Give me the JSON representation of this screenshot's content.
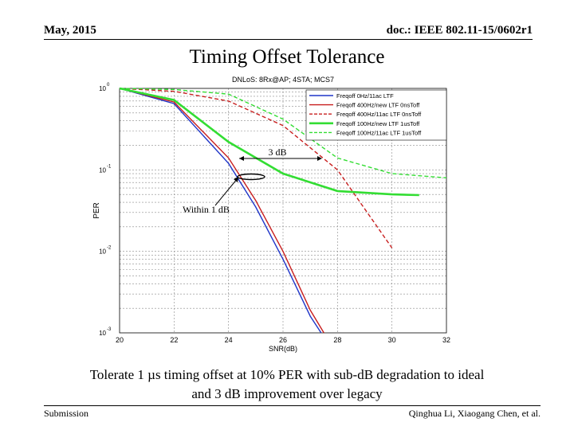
{
  "header": {
    "date": "May, 2015",
    "doc": "doc.: IEEE 802.11-15/0602r1"
  },
  "slide_title": "Timing Offset Tolerance",
  "caption_line1": "Tolerate 1 µs timing offset at 10% PER with sub-dB degradation to ideal",
  "caption_line2": "and 3 dB improvement over legacy",
  "footer": {
    "left": "Submission",
    "right": "Qinghua Li, Xiaogang Chen, et al."
  },
  "colors": {
    "blue": "#1f35c8",
    "red": "#c81e1e",
    "green": "#33dd33"
  },
  "chart_data": {
    "type": "line",
    "title": "DNLoS: 8Rx@AP; 4STA; MCS7",
    "xlabel": "SNR(dB)",
    "ylabel": "PER",
    "xlim": [
      20,
      32
    ],
    "ylim": [
      0.001,
      1
    ],
    "yscale": "log",
    "x_ticks": [
      "20",
      "22",
      "24",
      "26",
      "28",
      "30",
      "32"
    ],
    "y_ticks": [
      {
        "value": 1,
        "base": "10",
        "exp": "0"
      },
      {
        "value": 0.1,
        "base": "10",
        "exp": "-1"
      },
      {
        "value": 0.01,
        "base": "10",
        "exp": "-2"
      },
      {
        "value": 0.001,
        "base": "10",
        "exp": "-3"
      }
    ],
    "grid": true,
    "legend_position": "top-right",
    "series": [
      {
        "name": "Freqoff 0Hz/11ac LTF",
        "color": "#1f35c8",
        "dash": "solid",
        "width": 1.4,
        "x": [
          20,
          22,
          24,
          25,
          26,
          27,
          27.4
        ],
        "y": [
          1,
          0.65,
          0.12,
          0.035,
          0.008,
          0.0016,
          0.001
        ]
      },
      {
        "name": "Freqoff 400Hz/new LTF 0nsToff",
        "color": "#c81e1e",
        "dash": "solid",
        "width": 1.4,
        "x": [
          20,
          22,
          24,
          25,
          26,
          27,
          27.5
        ],
        "y": [
          1,
          0.68,
          0.14,
          0.042,
          0.01,
          0.0019,
          0.001
        ]
      },
      {
        "name": "Freqoff 400Hz/11ac LTF 0nsToff",
        "color": "#c81e1e",
        "dash": "dashed",
        "width": 1.4,
        "x": [
          20,
          22,
          24,
          26,
          28,
          30
        ],
        "y": [
          1,
          0.92,
          0.7,
          0.35,
          0.1,
          0.011
        ]
      },
      {
        "name": "Freqoff 100Hz/new LTF 1usToff",
        "color": "#33dd33",
        "dash": "solid",
        "width": 2.6,
        "x": [
          20,
          22,
          24,
          26,
          28,
          30,
          31
        ],
        "y": [
          1,
          0.72,
          0.22,
          0.09,
          0.055,
          0.05,
          0.049
        ]
      },
      {
        "name": "Freqoff 100Hz/11ac LTF 1usToff",
        "color": "#33dd33",
        "dash": "dashed",
        "width": 1.4,
        "x": [
          20,
          22,
          24,
          26,
          28,
          30,
          32
        ],
        "y": [
          1,
          0.97,
          0.85,
          0.42,
          0.14,
          0.09,
          0.08
        ]
      }
    ],
    "annotations": [
      {
        "text": "3 dB"
      },
      {
        "text": "Within 1 dB"
      }
    ]
  }
}
